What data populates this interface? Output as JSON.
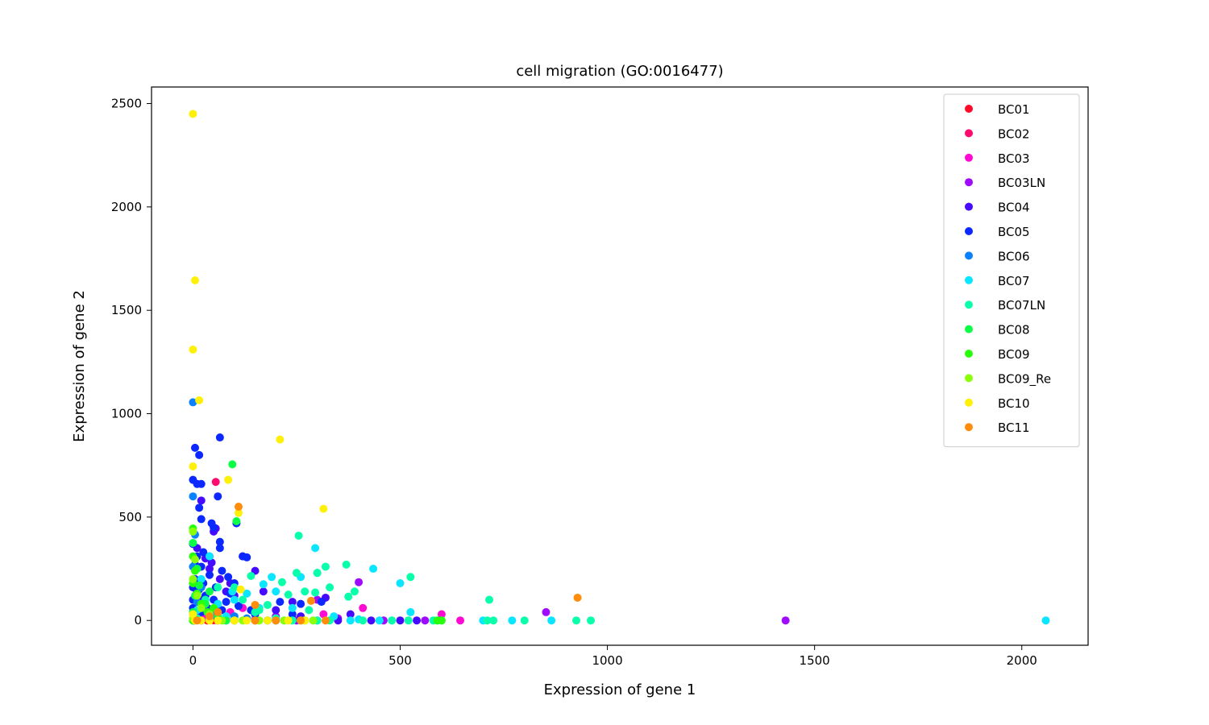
{
  "chart_data": {
    "type": "scatter",
    "title": "cell migration (GO:0016477)",
    "xlabel": "Expression of gene 1",
    "ylabel": "Expression of gene 2",
    "xlim": [
      -100,
      2160
    ],
    "ylim": [
      -120,
      2580
    ],
    "xticks": [
      0,
      500,
      1000,
      1500,
      2000
    ],
    "yticks": [
      0,
      500,
      1000,
      1500,
      2000,
      2500
    ],
    "grid": false,
    "legend_position": "top-right",
    "series": [
      {
        "name": "BC01",
        "color": "#ff0a28",
        "points": [
          [
            3,
            0
          ],
          [
            12,
            2
          ],
          [
            20,
            5
          ],
          [
            35,
            0
          ],
          [
            50,
            1
          ]
        ]
      },
      {
        "name": "BC02",
        "color": "#ff0a6e",
        "points": [
          [
            55,
            670
          ],
          [
            10,
            20
          ],
          [
            25,
            5
          ],
          [
            60,
            0
          ],
          [
            80,
            10
          ],
          [
            100,
            0
          ]
        ]
      },
      {
        "name": "BC03",
        "color": "#ff0ad2",
        "points": [
          [
            410,
            60
          ],
          [
            600,
            30
          ],
          [
            645,
            0
          ],
          [
            315,
            30
          ],
          [
            200,
            10
          ],
          [
            150,
            0
          ],
          [
            90,
            40
          ],
          [
            30,
            20
          ],
          [
            120,
            60
          ]
        ]
      },
      {
        "name": "BC03LN",
        "color": "#a00aff",
        "points": [
          [
            1430,
            0
          ],
          [
            852,
            40
          ],
          [
            400,
            185
          ],
          [
            300,
            100
          ],
          [
            150,
            5
          ],
          [
            250,
            0
          ],
          [
            350,
            10
          ],
          [
            460,
            0
          ],
          [
            560,
            0
          ],
          [
            80,
            0
          ],
          [
            20,
            0
          ],
          [
            200,
            20
          ]
        ]
      },
      {
        "name": "BC04",
        "color": "#460aff",
        "points": [
          [
            55,
            445
          ],
          [
            50,
            430
          ],
          [
            120,
            310
          ],
          [
            150,
            240
          ],
          [
            20,
            580
          ],
          [
            10,
            350
          ],
          [
            30,
            300
          ],
          [
            40,
            250
          ],
          [
            65,
            200
          ],
          [
            90,
            180
          ],
          [
            100,
            120
          ],
          [
            170,
            140
          ],
          [
            240,
            90
          ],
          [
            320,
            110
          ],
          [
            380,
            30
          ],
          [
            430,
            0
          ],
          [
            500,
            0
          ],
          [
            540,
            0
          ],
          [
            8,
            150
          ],
          [
            15,
            100
          ],
          [
            5,
            50
          ],
          [
            3,
            0
          ],
          [
            60,
            60
          ],
          [
            200,
            50
          ],
          [
            260,
            20
          ],
          [
            300,
            0
          ],
          [
            350,
            0
          ],
          [
            45,
            280
          ],
          [
            80,
            140
          ]
        ]
      },
      {
        "name": "BC05",
        "color": "#0a28ff",
        "points": [
          [
            65,
            885
          ],
          [
            15,
            800
          ],
          [
            5,
            835
          ],
          [
            0,
            680
          ],
          [
            10,
            660
          ],
          [
            20,
            660
          ],
          [
            15,
            545
          ],
          [
            60,
            600
          ],
          [
            45,
            470
          ],
          [
            50,
            450
          ],
          [
            20,
            490
          ],
          [
            105,
            470
          ],
          [
            65,
            380
          ],
          [
            0,
            370
          ],
          [
            25,
            330
          ],
          [
            10,
            310
          ],
          [
            40,
            310
          ],
          [
            130,
            305
          ],
          [
            120,
            310
          ],
          [
            65,
            350
          ],
          [
            5,
            270
          ],
          [
            20,
            260
          ],
          [
            40,
            220
          ],
          [
            70,
            240
          ],
          [
            85,
            210
          ],
          [
            100,
            180
          ],
          [
            0,
            160
          ],
          [
            15,
            150
          ],
          [
            30,
            120
          ],
          [
            50,
            100
          ],
          [
            80,
            90
          ],
          [
            110,
            70
          ],
          [
            0,
            60
          ],
          [
            20,
            40
          ],
          [
            40,
            20
          ],
          [
            60,
            10
          ],
          [
            140,
            50
          ],
          [
            180,
            0
          ],
          [
            210,
            90
          ],
          [
            240,
            30
          ],
          [
            260,
            80
          ],
          [
            310,
            90
          ],
          [
            10,
            10
          ],
          [
            5,
            200
          ],
          [
            25,
            180
          ],
          [
            70,
            50
          ],
          [
            90,
            130
          ],
          [
            150,
            30
          ],
          [
            0,
            100
          ],
          [
            35,
            60
          ],
          [
            55,
            160
          ]
        ]
      },
      {
        "name": "BC06",
        "color": "#0a82ff",
        "points": [
          [
            0,
            1055
          ],
          [
            0,
            600
          ],
          [
            5,
            415
          ],
          [
            0,
            260
          ],
          [
            20,
            160
          ],
          [
            10,
            90
          ],
          [
            50,
            30
          ],
          [
            100,
            20
          ],
          [
            40,
            5
          ],
          [
            0,
            0
          ],
          [
            130,
            10
          ],
          [
            200,
            0
          ]
        ]
      },
      {
        "name": "BC07",
        "color": "#0ae6ff",
        "points": [
          [
            2058,
            0
          ],
          [
            865,
            0
          ],
          [
            770,
            0
          ],
          [
            525,
            40
          ],
          [
            500,
            180
          ],
          [
            435,
            250
          ],
          [
            295,
            350
          ],
          [
            260,
            210
          ],
          [
            190,
            210
          ],
          [
            170,
            175
          ],
          [
            130,
            130
          ],
          [
            95,
            140
          ],
          [
            40,
            310
          ],
          [
            100,
            100
          ],
          [
            200,
            140
          ],
          [
            300,
            230
          ],
          [
            450,
            0
          ],
          [
            480,
            0
          ],
          [
            380,
            0
          ],
          [
            10,
            50
          ],
          [
            60,
            80
          ],
          [
            240,
            60
          ],
          [
            340,
            20
          ],
          [
            20,
            200
          ],
          [
            160,
            60
          ],
          [
            80,
            20
          ],
          [
            400,
            5
          ],
          [
            700,
            0
          ],
          [
            220,
            0
          ]
        ]
      },
      {
        "name": "BC07LN",
        "color": "#0affaa",
        "points": [
          [
            960,
            0
          ],
          [
            925,
            0
          ],
          [
            800,
            0
          ],
          [
            725,
            0
          ],
          [
            715,
            100
          ],
          [
            710,
            0
          ],
          [
            600,
            0
          ],
          [
            525,
            210
          ],
          [
            370,
            270
          ],
          [
            320,
            260
          ],
          [
            300,
            230
          ],
          [
            330,
            160
          ],
          [
            295,
            135
          ],
          [
            255,
            410
          ],
          [
            250,
            230
          ],
          [
            270,
            140
          ],
          [
            215,
            185
          ],
          [
            180,
            75
          ],
          [
            160,
            50
          ],
          [
            230,
            125
          ],
          [
            140,
            215
          ],
          [
            120,
            100
          ],
          [
            150,
            40
          ],
          [
            390,
            140
          ],
          [
            375,
            115
          ],
          [
            410,
            0
          ],
          [
            480,
            0
          ],
          [
            520,
            0
          ],
          [
            580,
            0
          ],
          [
            200,
            10
          ],
          [
            280,
            50
          ],
          [
            100,
            160
          ],
          [
            60,
            160
          ],
          [
            30,
            100
          ],
          [
            10,
            10
          ],
          [
            40,
            10
          ],
          [
            240,
            0
          ],
          [
            260,
            0
          ],
          [
            300,
            0
          ],
          [
            330,
            0
          ]
        ]
      },
      {
        "name": "BC08",
        "color": "#0aff46",
        "points": [
          [
            95,
            755
          ],
          [
            105,
            480
          ],
          [
            0,
            375
          ],
          [
            15,
            170
          ],
          [
            5,
            120
          ],
          [
            30,
            80
          ],
          [
            0,
            40
          ],
          [
            60,
            20
          ],
          [
            80,
            0
          ],
          [
            590,
            0
          ],
          [
            10,
            250
          ],
          [
            40,
            140
          ]
        ]
      },
      {
        "name": "BC09",
        "color": "#28ff0a",
        "points": [
          [
            0,
            445
          ],
          [
            0,
            310
          ],
          [
            5,
            240
          ],
          [
            0,
            180
          ],
          [
            10,
            130
          ],
          [
            20,
            80
          ],
          [
            35,
            40
          ],
          [
            0,
            0
          ],
          [
            50,
            60
          ],
          [
            100,
            0
          ],
          [
            150,
            0
          ],
          [
            200,
            0
          ],
          [
            270,
            0
          ],
          [
            590,
            0
          ],
          [
            600,
            0
          ]
        ]
      },
      {
        "name": "BC09_Re",
        "color": "#8cff0a",
        "points": [
          [
            0,
            430
          ],
          [
            5,
            295
          ],
          [
            0,
            200
          ],
          [
            10,
            120
          ],
          [
            20,
            60
          ],
          [
            40,
            30
          ],
          [
            0,
            10
          ],
          [
            70,
            0
          ],
          [
            120,
            0
          ],
          [
            160,
            0
          ],
          [
            220,
            0
          ],
          [
            290,
            0
          ]
        ]
      },
      {
        "name": "BC10",
        "color": "#fff00a",
        "points": [
          [
            0,
            2450
          ],
          [
            5,
            1645
          ],
          [
            0,
            1310
          ],
          [
            15,
            1065
          ],
          [
            210,
            875
          ],
          [
            0,
            745
          ],
          [
            85,
            680
          ],
          [
            315,
            540
          ],
          [
            110,
            520
          ],
          [
            115,
            150
          ],
          [
            0,
            30
          ],
          [
            20,
            0
          ],
          [
            60,
            0
          ],
          [
            100,
            0
          ],
          [
            180,
            0
          ],
          [
            270,
            0
          ],
          [
            5,
            0
          ],
          [
            40,
            0
          ],
          [
            130,
            0
          ],
          [
            230,
            0
          ]
        ]
      },
      {
        "name": "BC11",
        "color": "#ff8c0a",
        "points": [
          [
            928,
            110
          ],
          [
            110,
            550
          ],
          [
            285,
            95
          ],
          [
            150,
            75
          ],
          [
            60,
            40
          ],
          [
            40,
            20
          ],
          [
            150,
            0
          ],
          [
            200,
            0
          ],
          [
            320,
            0
          ],
          [
            260,
            0
          ],
          [
            10,
            0
          ]
        ]
      }
    ]
  }
}
